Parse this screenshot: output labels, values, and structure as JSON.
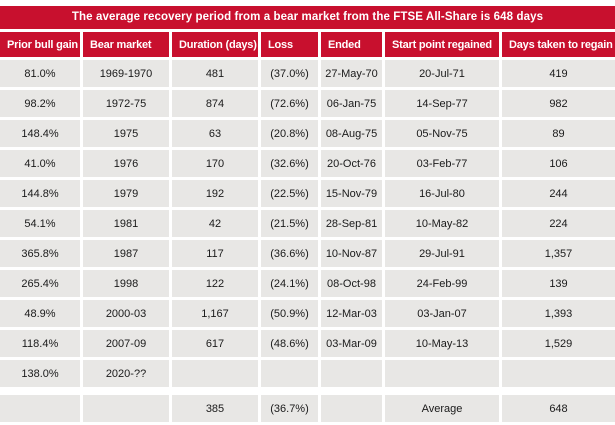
{
  "title": "The average recovery period from a bear market from the FTSE All-Share is 648 days",
  "chart_data": {
    "type": "table",
    "title": "The average recovery period from a bear market from the FTSE All-Share is 648 days",
    "columns": [
      "Prior bull gain",
      "Bear market",
      "Duration (days)",
      "Loss",
      "Ended",
      "Start point regained",
      "Days taken to regain"
    ],
    "rows": [
      [
        "81.0%",
        "1969-1970",
        "481",
        "(37.0%)",
        "27-May-70",
        "20-Jul-71",
        "419"
      ],
      [
        "98.2%",
        "1972-75",
        "874",
        "(72.6%)",
        "06-Jan-75",
        "14-Sep-77",
        "982"
      ],
      [
        "148.4%",
        "1975",
        "63",
        "(20.8%)",
        "08-Aug-75",
        "05-Nov-75",
        "89"
      ],
      [
        "41.0%",
        "1976",
        "170",
        "(32.6%)",
        "20-Oct-76",
        "03-Feb-77",
        "106"
      ],
      [
        "144.8%",
        "1979",
        "192",
        "(22.5%)",
        "15-Nov-79",
        "16-Jul-80",
        "244"
      ],
      [
        "54.1%",
        "1981",
        "42",
        "(21.5%)",
        "28-Sep-81",
        "10-May-82",
        "224"
      ],
      [
        "365.8%",
        "1987",
        "117",
        "(36.6%)",
        "10-Nov-87",
        "29-Jul-91",
        "1,357"
      ],
      [
        "265.4%",
        "1998",
        "122",
        "(24.1%)",
        "08-Oct-98",
        "24-Feb-99",
        "139"
      ],
      [
        "48.9%",
        "2000-03",
        "1,167",
        "(50.9%)",
        "12-Mar-03",
        "03-Jan-07",
        "1,393"
      ],
      [
        "118.4%",
        "2007-09",
        "617",
        "(48.6%)",
        "03-Mar-09",
        "10-May-13",
        "1,529"
      ],
      [
        "138.0%",
        "2020-??",
        "",
        "",
        "",
        "",
        ""
      ]
    ],
    "summary_row": [
      "",
      "",
      "385",
      "(36.7%)",
      "",
      "Average",
      "648"
    ],
    "average_days": "648",
    "layout_hints": {
      "header_alignment": "left",
      "cell_alignment": "center",
      "summary_separated_by_gap": true
    }
  },
  "colors": {
    "header_red": "#C8102E",
    "row_gray": "#E8E7E5",
    "text_dark": "#1A1A1A",
    "background": "#FFFFFF",
    "header_text": "#FFFFFF"
  }
}
